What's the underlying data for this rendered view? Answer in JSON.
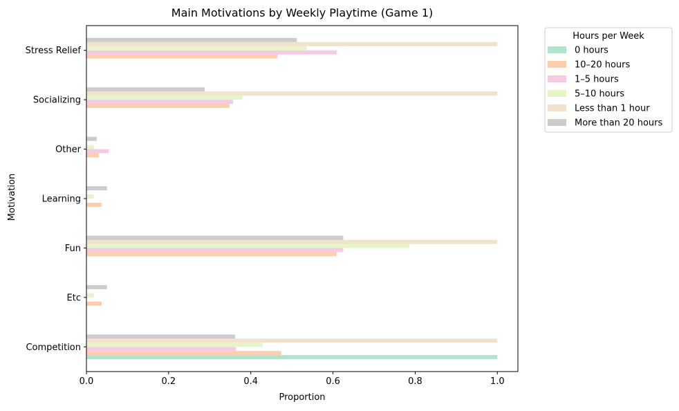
{
  "chart_data": {
    "type": "bar",
    "orientation": "horizontal",
    "title": "Main Motivations by Weekly Playtime (Game 1)",
    "xlabel": "Proportion",
    "ylabel": "Motivation",
    "xlim": [
      0,
      1.05
    ],
    "xticks": [
      0.0,
      0.2,
      0.4,
      0.6,
      0.8,
      1.0
    ],
    "xtick_labels": [
      "0.0",
      "0.2",
      "0.4",
      "0.6",
      "0.8",
      "1.0"
    ],
    "grid": false,
    "legend": {
      "title": "Hours per Week",
      "placement": "outside-top-right"
    },
    "categories": [
      "Competition",
      "Etc",
      "Fun",
      "Learning",
      "Other",
      "Socializing",
      "Stress Relief"
    ],
    "series": [
      {
        "name": "0 hours",
        "color": "#b3e2cd",
        "values": [
          1.0,
          0,
          0,
          0,
          0,
          0,
          0
        ]
      },
      {
        "name": "10–20 hours",
        "color": "#fdcdac",
        "values": [
          0.474,
          0.037,
          0.609,
          0.037,
          0.03,
          0.348,
          0.465
        ]
      },
      {
        "name": "1–5 hours",
        "color": "#f4cae4",
        "values": [
          0.364,
          0,
          0.625,
          0,
          0.054,
          0.357,
          0.609
        ]
      },
      {
        "name": "5–10 hours",
        "color": "#e6f5c9",
        "values": [
          0.429,
          0.018,
          0.786,
          0.018,
          0.018,
          0.38,
          0.536
        ]
      },
      {
        "name": "Less than 1 hour",
        "color": "#f1e2cc",
        "values": [
          1.0,
          0,
          1.0,
          0,
          0,
          1.0,
          1.0
        ]
      },
      {
        "name": "More than 20 hours",
        "color": "#cccccc",
        "values": [
          0.362,
          0.05,
          0.625,
          0.05,
          0.025,
          0.288,
          0.512
        ]
      }
    ]
  }
}
